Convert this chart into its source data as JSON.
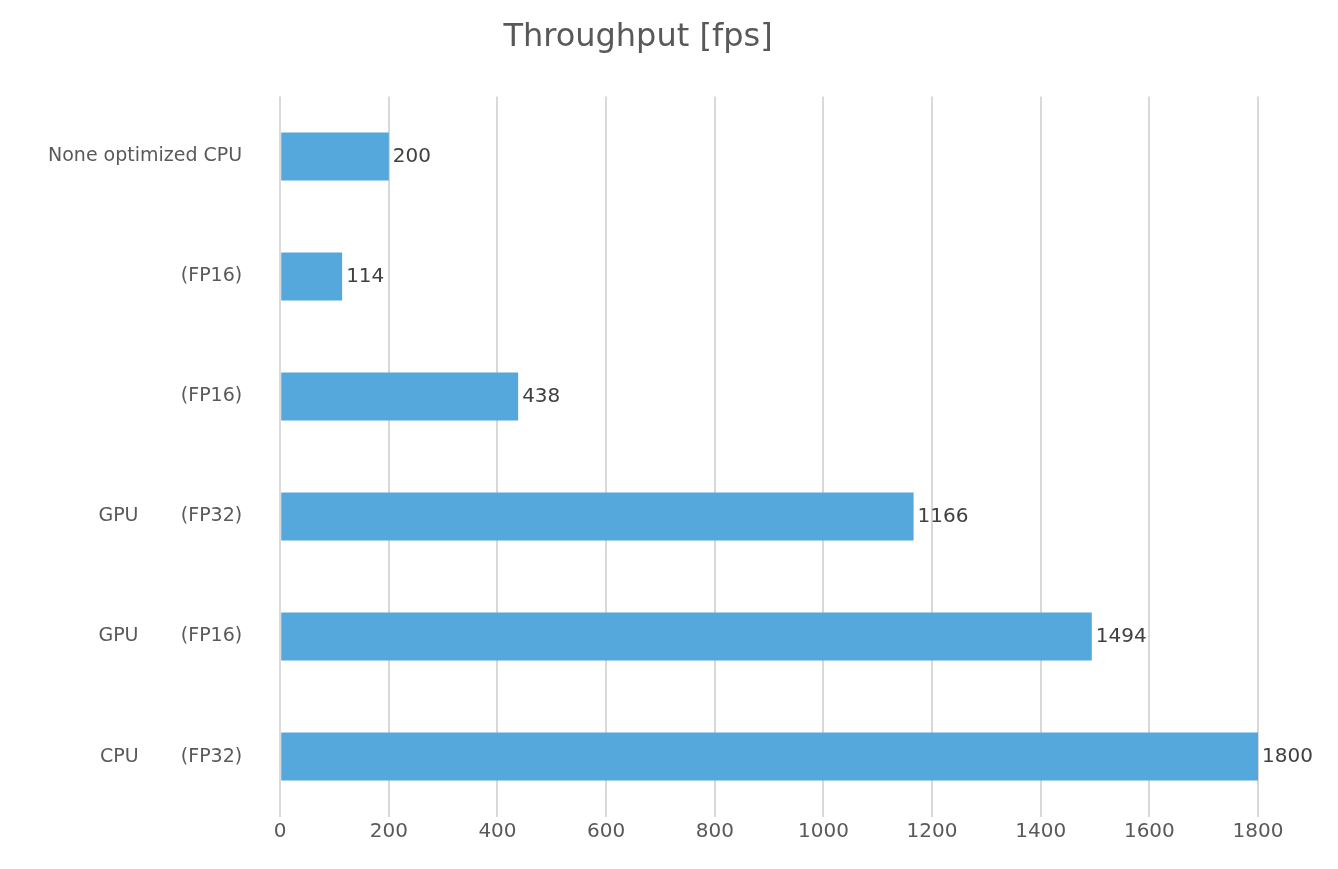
{
  "chart_data": {
    "type": "bar",
    "orientation": "horizontal",
    "title": "Throughput [fps]",
    "categories": [
      "None optimized CPU",
      "(FP16)",
      "(FP16)",
      "GPU       (FP32)",
      "GPU       (FP16)",
      "CPU       (FP32)"
    ],
    "values": [
      200,
      114,
      438,
      1166,
      1494,
      1800
    ],
    "color": "#55a8db",
    "xlim": [
      0,
      1800
    ],
    "xticks": [
      0,
      200,
      400,
      600,
      800,
      1000,
      1200,
      1400,
      1600,
      1800
    ],
    "grid": "x",
    "data_labels": true
  }
}
